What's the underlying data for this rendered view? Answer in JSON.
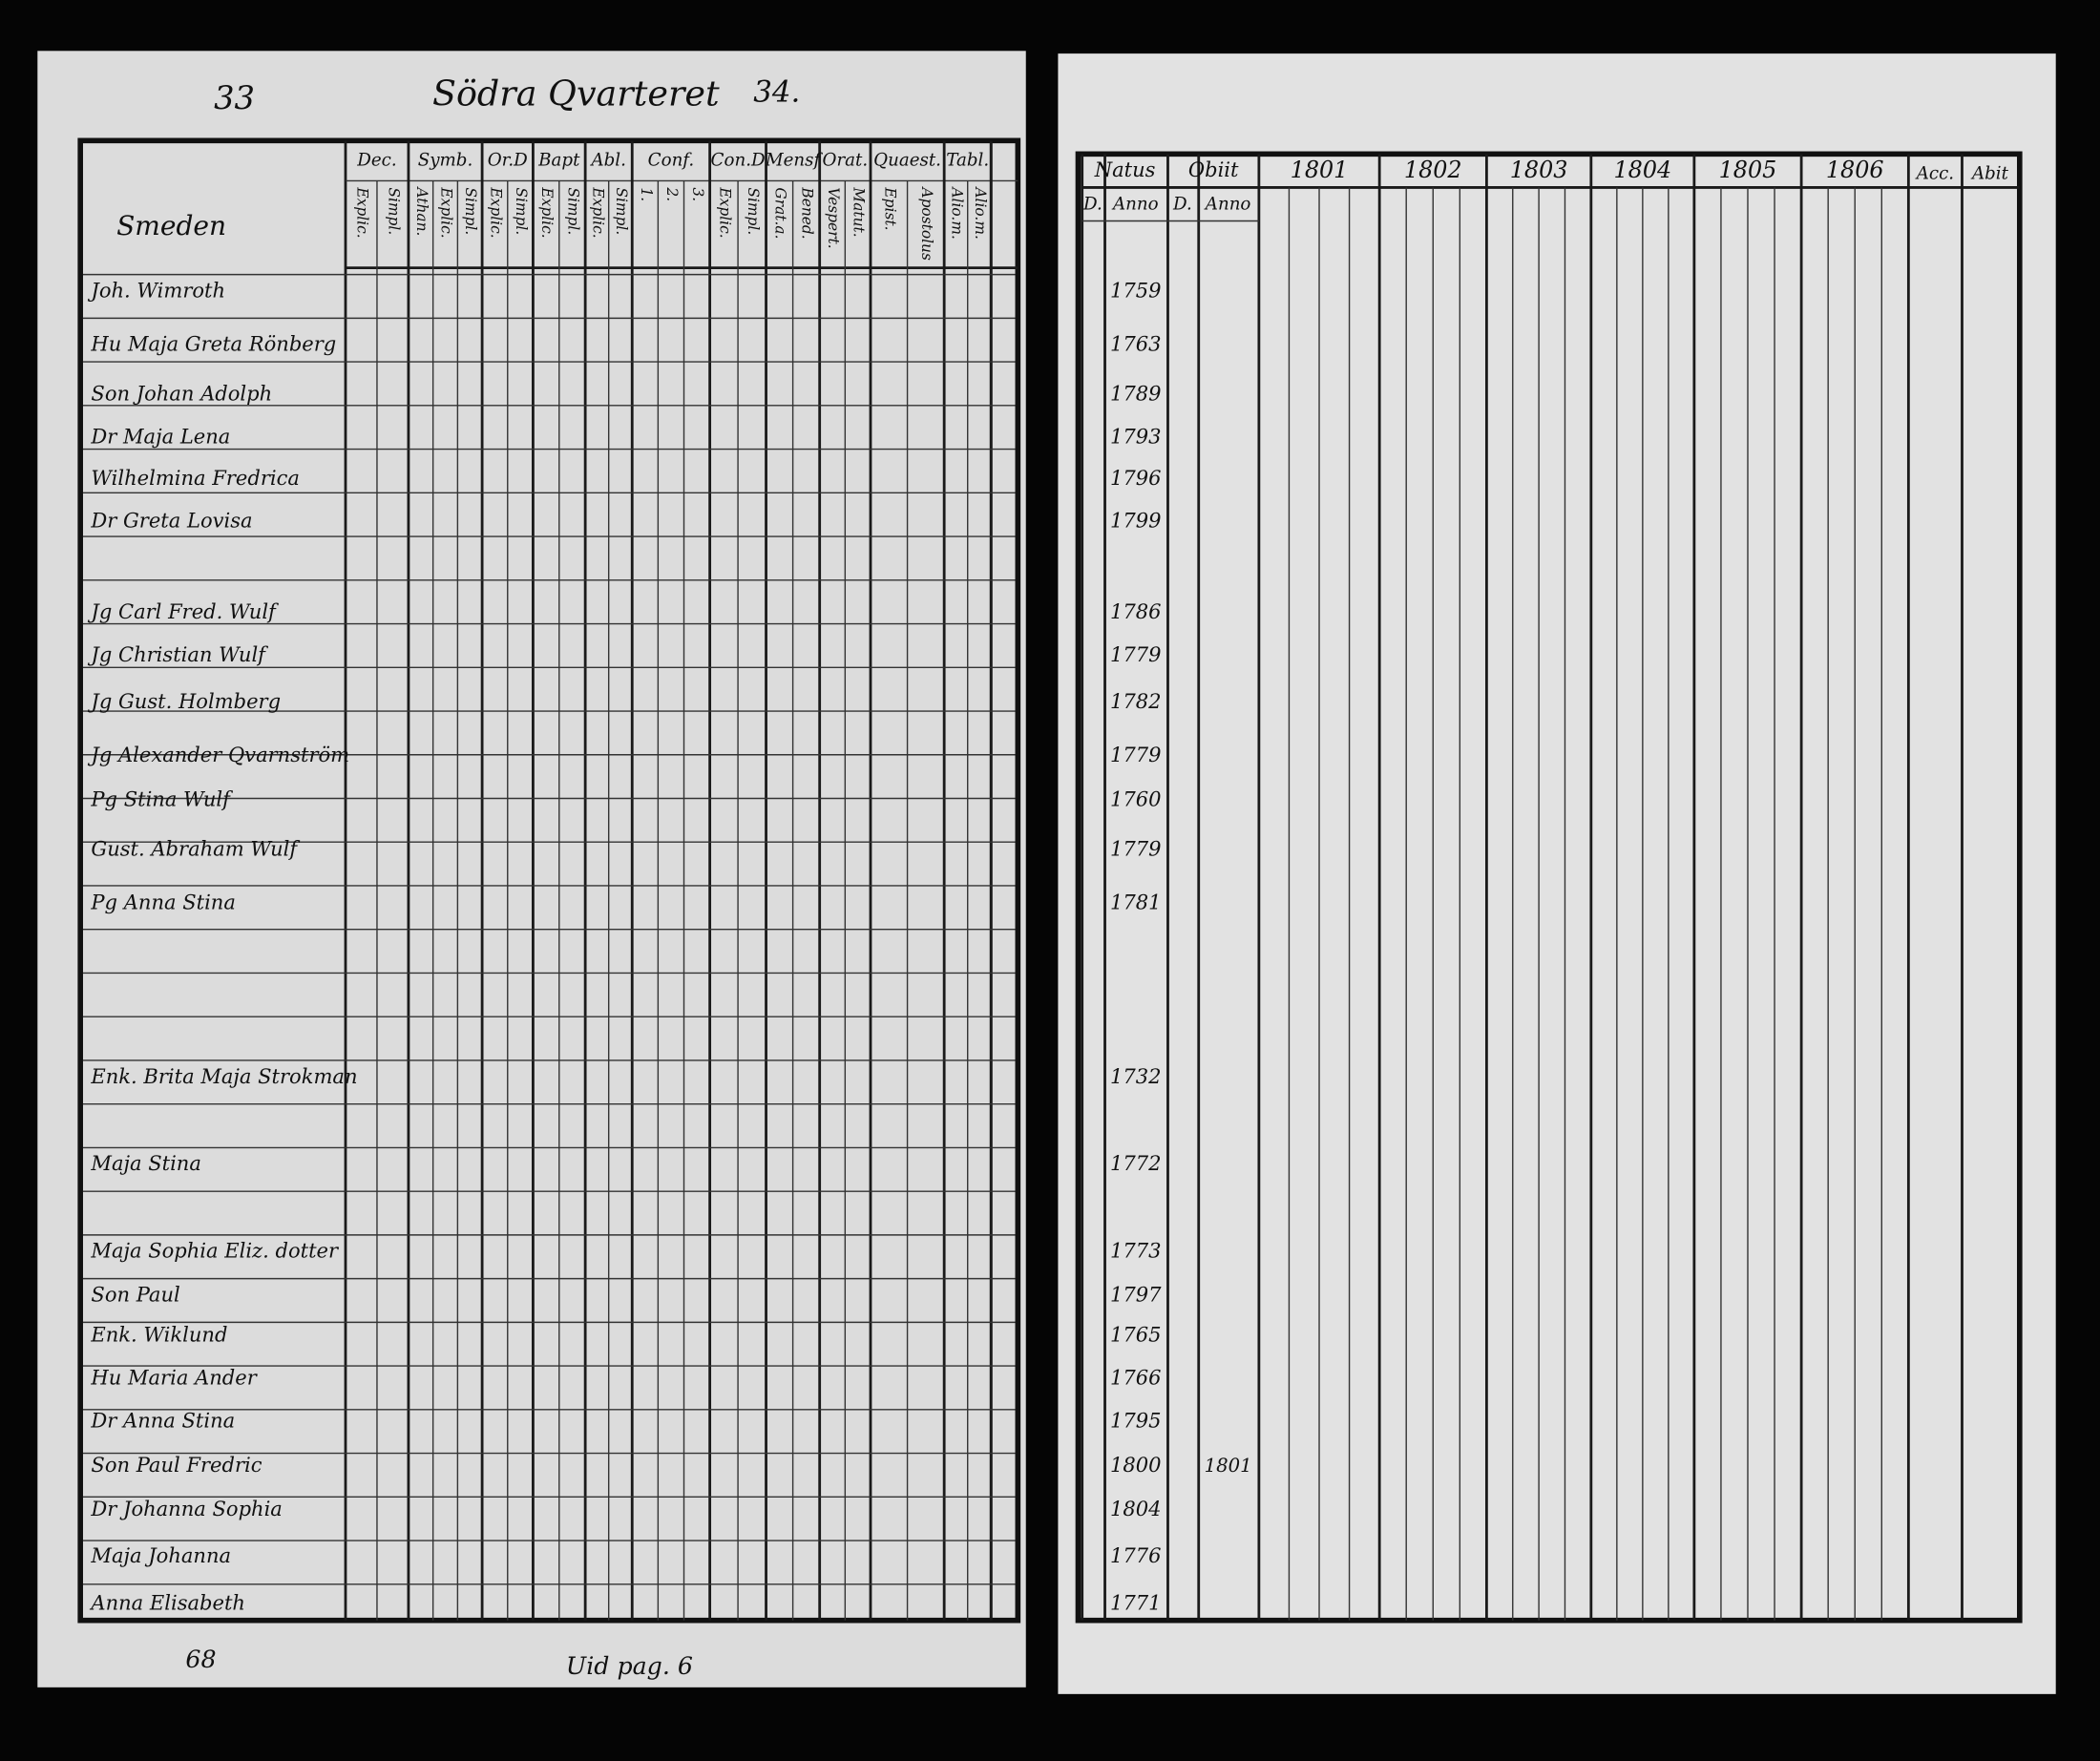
{
  "header": {
    "page_left": "33",
    "title": "Södra Qvarteret",
    "page_right": "34."
  },
  "district": "Smeden",
  "left_columns": [
    {
      "label": "Dec.",
      "sub": [
        "Explic.",
        "Simpl."
      ]
    },
    {
      "label": "Symb.",
      "sub": [
        "Athan.",
        "Explic.",
        "Simpl."
      ]
    },
    {
      "label": "Or.D",
      "sub": [
        "Explic.",
        "Simpl."
      ]
    },
    {
      "label": "Bapt",
      "sub": [
        "Explic.",
        "Simpl."
      ]
    },
    {
      "label": "Abl.",
      "sub": [
        "Explic.",
        "Simpl."
      ]
    },
    {
      "label": "Conf.",
      "sub": [
        "1.",
        "2.",
        "3."
      ]
    },
    {
      "label": "Con.D",
      "sub": [
        "Explic.",
        "Simpl."
      ]
    },
    {
      "label": "Mensf",
      "sub": [
        "Grat.a.",
        "Bened."
      ]
    },
    {
      "label": "Orat.",
      "sub": [
        "Vespert.",
        "Matut."
      ]
    },
    {
      "label": "Quaest.",
      "sub": [
        "Epist.",
        "Apostolus"
      ]
    },
    {
      "label": "Tabl.",
      "sub": [
        "Alio.m.",
        "Alio.m."
      ]
    }
  ],
  "right_columns": {
    "natus": {
      "label": "Natus",
      "sub": [
        "D.",
        "Anno"
      ]
    },
    "obiit": {
      "label": "Obiit",
      "sub": [
        "D.",
        "Anno"
      ]
    },
    "years": [
      "1801",
      "1802",
      "1803",
      "1804",
      "1805",
      "1806"
    ],
    "accessit": "Acc.",
    "abiit": "Abit"
  },
  "rows": [
    {
      "name": "Joh. Wimroth",
      "born": "1759"
    },
    {
      "name": "Hu Maja Greta Rönberg",
      "born": "1763"
    },
    {
      "name": "Son Johan Adolph",
      "born": "1789"
    },
    {
      "name": "Dr Maja Lena",
      "born": "1793"
    },
    {
      "name": "Wilhelmina Fredrica",
      "born": "1796"
    },
    {
      "name": "Dr Greta Lovisa",
      "born": "1799"
    },
    {
      "name": "Jg Carl Fred. Wulf",
      "born": "1786"
    },
    {
      "name": "Jg Christian Wulf",
      "born": "1779"
    },
    {
      "name": "Jg Gust. Holmberg",
      "born": "1782"
    },
    {
      "name": "Jg Alexander Qvarnström",
      "born": "1779"
    },
    {
      "name": "Pg Stina Wulf",
      "born": "1760"
    },
    {
      "name": "Gust. Abraham Wulf",
      "born": "1779"
    },
    {
      "name": "Pg Anna Stina",
      "born": "1781"
    },
    {
      "name": "Enk. Brita Maja Strokman",
      "born": "1732"
    },
    {
      "name": "Maja Stina",
      "born": "1772"
    },
    {
      "name": "Maja Sophia Eliz. dotter",
      "born": "1773"
    },
    {
      "name": "Son Paul",
      "born": "1797"
    },
    {
      "name": "Enk. Wiklund",
      "born": "1765"
    },
    {
      "name": "Hu Maria Ander",
      "born": "1766"
    },
    {
      "name": "Dr Anna Stina",
      "born": "1795"
    },
    {
      "name": "Son Paul Fredric",
      "born": "1800",
      "died": "1801"
    },
    {
      "name": "Dr Johanna Sophia",
      "born": "1804"
    },
    {
      "name": "Maja Johanna",
      "born": "1776"
    },
    {
      "name": "Anna Elisabeth",
      "born": "1771"
    }
  ],
  "footer": {
    "left": "68",
    "note": "Uid pag. 6"
  }
}
